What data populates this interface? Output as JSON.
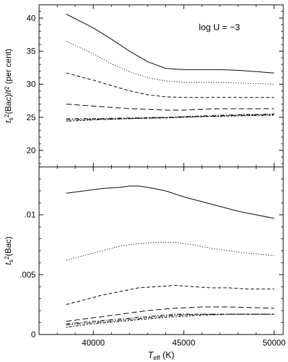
{
  "chart_data": [
    {
      "type": "line",
      "panel": "top",
      "annotation": "log U = −3",
      "ylabel_parts": [
        "t",
        "s",
        "2",
        "(Bac)/",
        "t",
        "2",
        " (per cent)"
      ],
      "xlim": [
        37000,
        50500
      ],
      "ylim": [
        17.5,
        42
      ],
      "yticks": [
        20,
        25,
        30,
        35,
        40
      ],
      "ytick_labels": [
        "20",
        "25",
        "30",
        "35",
        "40"
      ],
      "grid": false,
      "series": [
        {
          "dash": "solid",
          "x": [
            38500,
            40000,
            41000,
            42000,
            43000,
            44000,
            45000,
            46000,
            47000,
            48000,
            49000,
            50000
          ],
          "values": [
            40.6,
            38.5,
            36.8,
            35.0,
            33.4,
            32.4,
            32.2,
            32.2,
            32.2,
            32.1,
            31.9,
            31.7
          ]
        },
        {
          "dash": "dotted",
          "x": [
            38500,
            40000,
            41000,
            42000,
            43000,
            44000,
            45000,
            46000,
            47000,
            48000,
            49000,
            50000
          ],
          "values": [
            36.5,
            34.6,
            33.1,
            31.9,
            31.0,
            30.5,
            30.3,
            30.3,
            30.3,
            30.2,
            30.1,
            30.0
          ]
        },
        {
          "dash": "dashed",
          "x": [
            38500,
            40000,
            41000,
            42000,
            43000,
            44000,
            45000,
            46000,
            47000,
            48000,
            49000,
            50000
          ],
          "values": [
            31.7,
            30.6,
            29.8,
            29.0,
            28.4,
            28.1,
            28.0,
            28.0,
            28.0,
            28.0,
            28.0,
            28.0
          ]
        },
        {
          "dash": "longdash",
          "x": [
            38500,
            40000,
            41000,
            42000,
            43000,
            44000,
            45000,
            46000,
            47000,
            48000,
            49000,
            50000
          ],
          "values": [
            27.0,
            26.7,
            26.5,
            26.3,
            26.2,
            26.1,
            26.1,
            26.2,
            26.3,
            26.3,
            26.3,
            26.3
          ]
        },
        {
          "dash": "dashdot",
          "x": [
            38500,
            40000,
            42000,
            44000,
            46000,
            48000,
            50000
          ],
          "values": [
            24.8,
            24.8,
            24.9,
            25.0,
            25.2,
            25.4,
            25.5
          ]
        },
        {
          "dash": "dashdotdot",
          "x": [
            38500,
            40000,
            42000,
            44000,
            46000,
            48000,
            50000
          ],
          "values": [
            24.6,
            24.7,
            24.8,
            25.0,
            25.1,
            25.3,
            25.4
          ]
        },
        {
          "dash": "dotdash",
          "x": [
            38500,
            40000,
            42000,
            44000,
            46000,
            48000,
            50000
          ],
          "values": [
            24.4,
            24.6,
            24.8,
            24.9,
            25.1,
            25.2,
            25.3
          ]
        }
      ]
    },
    {
      "type": "line",
      "panel": "bottom",
      "ylabel_parts": [
        "t",
        "s",
        "2",
        "(Bac)"
      ],
      "xlabel_parts": [
        "T",
        "eff",
        " (K)"
      ],
      "xlim": [
        37000,
        50500
      ],
      "ylim": [
        0,
        0.014
      ],
      "xticks": [
        40000,
        45000,
        50000
      ],
      "xtick_labels": [
        "40000",
        "45000",
        "50000"
      ],
      "yticks": [
        0,
        0.005,
        0.01
      ],
      "ytick_labels": [
        "0",
        ".005",
        ".01"
      ],
      "grid": false,
      "series": [
        {
          "dash": "solid",
          "x": [
            38500,
            39500,
            40500,
            41500,
            42000,
            42500,
            43000,
            44000,
            45000,
            46000,
            47000,
            48000,
            49000,
            50000
          ],
          "values": [
            0.0118,
            0.012,
            0.0122,
            0.0123,
            0.0124,
            0.0124,
            0.0123,
            0.012,
            0.0115,
            0.0111,
            0.0107,
            0.0103,
            0.01,
            0.0097
          ]
        },
        {
          "dash": "dotted",
          "x": [
            38500,
            39500,
            40500,
            41500,
            42500,
            43500,
            44500,
            45500,
            46500,
            47500,
            48500,
            50000
          ],
          "values": [
            0.0062,
            0.0066,
            0.007,
            0.0074,
            0.0076,
            0.0077,
            0.0077,
            0.0075,
            0.0072,
            0.007,
            0.0068,
            0.0066
          ]
        },
        {
          "dash": "dashed",
          "x": [
            38500,
            39500,
            40500,
            41500,
            42500,
            43500,
            44500,
            45500,
            46500,
            47500,
            48500,
            50000
          ],
          "values": [
            0.0025,
            0.0029,
            0.0033,
            0.0036,
            0.0039,
            0.004,
            0.0041,
            0.004,
            0.0039,
            0.0039,
            0.0038,
            0.0038
          ]
        },
        {
          "dash": "longdash",
          "x": [
            38500,
            40000,
            41500,
            43000,
            44500,
            46000,
            47500,
            50000
          ],
          "values": [
            0.0011,
            0.0014,
            0.0017,
            0.002,
            0.0022,
            0.0023,
            0.0023,
            0.0022
          ]
        },
        {
          "dash": "dashdot",
          "x": [
            38500,
            40000,
            41500,
            43000,
            44500,
            46000,
            47500,
            50000
          ],
          "values": [
            0.0009,
            0.0011,
            0.0013,
            0.0015,
            0.0017,
            0.0017,
            0.0017,
            0.0017
          ]
        },
        {
          "dash": "dashdotdot",
          "x": [
            38500,
            40000,
            41500,
            43000,
            44500,
            46000,
            47500,
            50000
          ],
          "values": [
            0.0008,
            0.001,
            0.0012,
            0.0014,
            0.0016,
            0.0017,
            0.0017,
            0.0017
          ]
        },
        {
          "dash": "dotdash",
          "x": [
            38500,
            40000,
            41500,
            43000,
            44500,
            46000,
            47500,
            50000
          ],
          "values": [
            0.0006,
            0.0009,
            0.0011,
            0.0013,
            0.0015,
            0.0016,
            0.0017,
            0.0017
          ]
        }
      ]
    }
  ]
}
